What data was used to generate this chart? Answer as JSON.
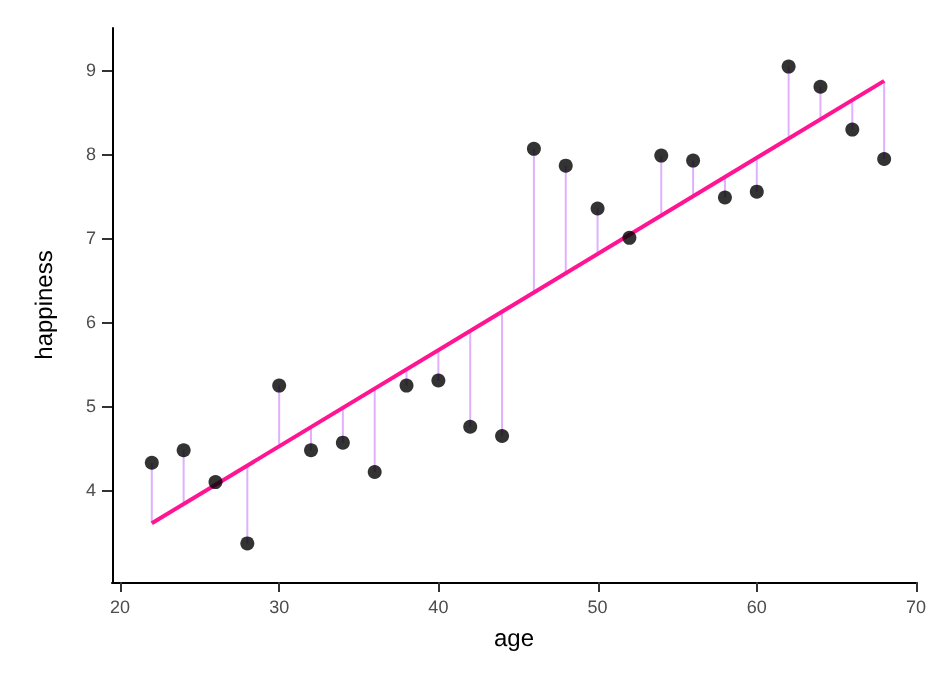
{
  "chart_data": {
    "type": "scatter",
    "xlabel": "age",
    "ylabel": "happiness",
    "xlim": [
      19.5,
      70
    ],
    "ylim": [
      2.9,
      9.5
    ],
    "xticks": [
      20,
      30,
      40,
      50,
      60,
      70
    ],
    "yticks": [
      4,
      5,
      6,
      7,
      8,
      9
    ],
    "grid": false,
    "marker": "circle",
    "series": [
      {
        "color": "#000000",
        "x": [
          22,
          24,
          26,
          28,
          30,
          32,
          34,
          36,
          38,
          40,
          42,
          44,
          46,
          48,
          50,
          52,
          54,
          56,
          58,
          60,
          62,
          64,
          66,
          68
        ],
        "values": [
          4.32,
          4.47,
          4.09,
          3.36,
          5.24,
          4.47,
          4.56,
          4.21,
          5.24,
          5.3,
          4.75,
          4.64,
          8.06,
          7.86,
          7.35,
          7.0,
          7.98,
          7.92,
          7.48,
          7.55,
          9.04,
          8.8,
          8.29,
          7.94
        ],
        "errors": [
          [
            3.6,
            4.32
          ],
          [
            3.83,
            4.47
          ],
          [
            4.06,
            4.09
          ],
          [
            3.36,
            4.29
          ],
          [
            4.52,
            5.24
          ],
          [
            4.47,
            4.75
          ],
          [
            4.56,
            4.97
          ],
          [
            4.21,
            5.2
          ],
          [
            5.24,
            5.43
          ],
          [
            5.3,
            5.66
          ],
          [
            4.75,
            5.89
          ],
          [
            4.64,
            6.12
          ],
          [
            6.35,
            8.06
          ],
          [
            6.58,
            7.86
          ],
          [
            6.81,
            7.35
          ],
          [
            7.0,
            7.03
          ],
          [
            7.26,
            7.98
          ],
          [
            7.49,
            7.92
          ],
          [
            7.48,
            7.72
          ],
          [
            7.55,
            7.95
          ],
          [
            8.18,
            9.04
          ],
          [
            8.41,
            8.8
          ],
          [
            8.29,
            8.64
          ],
          [
            7.94,
            8.87
          ]
        ]
      },
      {
        "type": "line",
        "color": "#ff1493",
        "x": [
          22,
          68
        ],
        "values": [
          3.6,
          8.87
        ],
        "marker": "none"
      }
    ]
  }
}
